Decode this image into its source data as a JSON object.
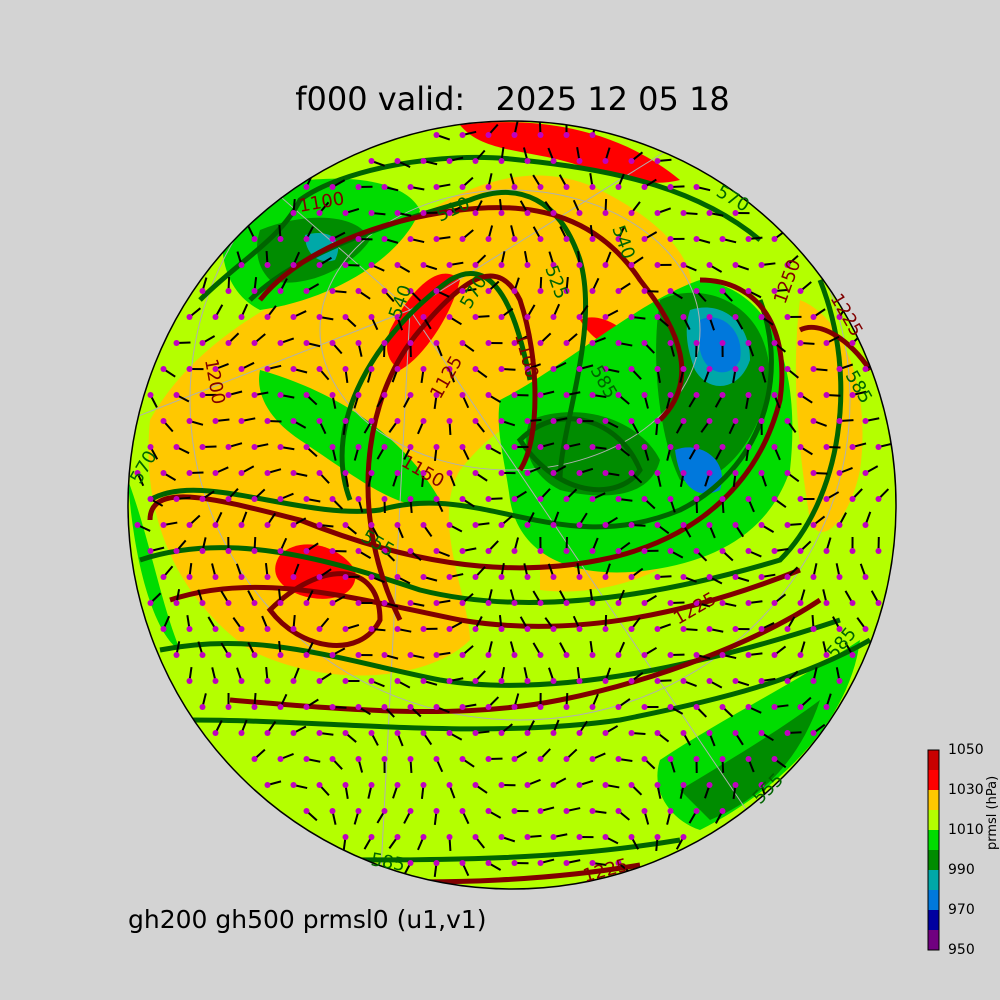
{
  "title": "f000 valid:   2025 12 05 18",
  "subtitle": "gh200 gh500 prmsl0 (u1,v1)",
  "colorbar": {
    "label": "prmsl (hPa)",
    "ticks": [
      "1050",
      "1030",
      "1010",
      "990",
      "970",
      "950"
    ],
    "bins": [
      {
        "from": 950,
        "to": 960,
        "color": "#700080"
      },
      {
        "from": 960,
        "to": 970,
        "color": "#0000a0"
      },
      {
        "from": 970,
        "to": 980,
        "color": "#0078dc"
      },
      {
        "from": 980,
        "to": 990,
        "color": "#00a8a8"
      },
      {
        "from": 990,
        "to": 1000,
        "color": "#008c00"
      },
      {
        "from": 1000,
        "to": 1010,
        "color": "#00dc00"
      },
      {
        "from": 1010,
        "to": 1020,
        "color": "#b4ff00"
      },
      {
        "from": 1020,
        "to": 1030,
        "color": "#ffc800"
      },
      {
        "from": 1030,
        "to": 1040,
        "color": "#ff0000"
      },
      {
        "from": 1040,
        "to": 1050,
        "color": "#c80000"
      }
    ]
  },
  "contour_colors": {
    "gh500": "#006400",
    "gh200": "#800000",
    "wind_barbs": "#000000",
    "wind_dots": "#c000c0"
  },
  "gh500_labels": [
    "510",
    "525",
    "540",
    "540",
    "570",
    "570",
    "570",
    "585",
    "585",
    "555",
    "555",
    "585",
    "585"
  ],
  "gh200_labels": [
    "1100",
    "1100",
    "1125",
    "1200",
    "1150",
    "1225",
    "1225",
    "1250",
    "1225"
  ]
}
